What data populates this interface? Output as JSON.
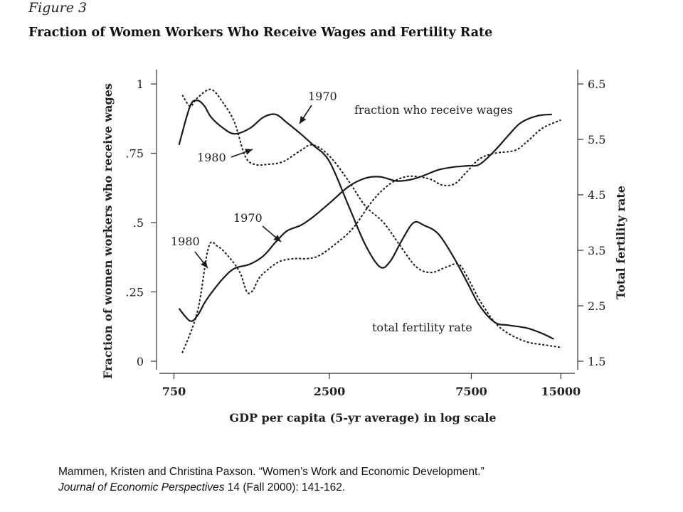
{
  "figure": {
    "label": "Figure 3",
    "title": "Fraction of Women Workers Who Receive Wages and Fertility Rate"
  },
  "chart_data": {
    "type": "line",
    "x_scale": "log",
    "xlabel": "GDP per capita (5-yr average) in log scale",
    "x_ticks": [
      750,
      2500,
      7500,
      15000
    ],
    "x_tick_labels": [
      "750",
      "2500",
      "7500",
      "15000"
    ],
    "xlim": [
      700,
      16000
    ],
    "y_left": {
      "label": "Fraction of women workers who receive wages",
      "ylim": [
        0,
        1
      ],
      "ticks": [
        1,
        0.75,
        0.5,
        0.25,
        0
      ],
      "tick_labels": [
        "1",
        ".75",
        ".5",
        ".25",
        "0"
      ]
    },
    "y_right": {
      "label": "Total fertility rate",
      "ylim": [
        1.5,
        6.5
      ],
      "ticks": [
        6.5,
        5.5,
        4.5,
        3.5,
        2.5,
        1.5
      ],
      "tick_labels": [
        "6.5",
        "5.5",
        "4.5",
        "3.5",
        "2.5",
        "1.5"
      ]
    },
    "series": [
      {
        "axis": "left",
        "style": "solid",
        "curve": "wages",
        "year": "1970",
        "points": [
          [
            780,
            0.19
          ],
          [
            850,
            0.145
          ],
          [
            900,
            0.165
          ],
          [
            950,
            0.21
          ],
          [
            1000,
            0.245
          ],
          [
            1100,
            0.3
          ],
          [
            1200,
            0.335
          ],
          [
            1350,
            0.35
          ],
          [
            1500,
            0.38
          ],
          [
            1650,
            0.43
          ],
          [
            1800,
            0.47
          ],
          [
            2000,
            0.49
          ],
          [
            2200,
            0.52
          ],
          [
            2500,
            0.57
          ],
          [
            2900,
            0.63
          ],
          [
            3300,
            0.66
          ],
          [
            3700,
            0.665
          ],
          [
            4200,
            0.65
          ],
          [
            4700,
            0.655
          ],
          [
            5200,
            0.67
          ],
          [
            5800,
            0.69
          ],
          [
            6500,
            0.7
          ],
          [
            7300,
            0.705
          ],
          [
            8000,
            0.71
          ],
          [
            9000,
            0.76
          ],
          [
            10000,
            0.815
          ],
          [
            11000,
            0.86
          ],
          [
            12500,
            0.885
          ],
          [
            14000,
            0.89
          ]
        ]
      },
      {
        "axis": "left",
        "style": "dotted",
        "curve": "wages",
        "year": "1980",
        "points": [
          [
            800,
            0.03
          ],
          [
            900,
            0.18
          ],
          [
            980,
            0.41
          ],
          [
            1050,
            0.415
          ],
          [
            1150,
            0.375
          ],
          [
            1250,
            0.32
          ],
          [
            1320,
            0.25
          ],
          [
            1380,
            0.255
          ],
          [
            1450,
            0.3
          ],
          [
            1550,
            0.33
          ],
          [
            1700,
            0.36
          ],
          [
            1900,
            0.37
          ],
          [
            2100,
            0.37
          ],
          [
            2300,
            0.38
          ],
          [
            2600,
            0.42
          ],
          [
            3000,
            0.48
          ],
          [
            3500,
            0.58
          ],
          [
            4000,
            0.64
          ],
          [
            4500,
            0.665
          ],
          [
            5000,
            0.665
          ],
          [
            5500,
            0.655
          ],
          [
            6000,
            0.635
          ],
          [
            6600,
            0.64
          ],
          [
            7200,
            0.68
          ],
          [
            8000,
            0.73
          ],
          [
            9000,
            0.75
          ],
          [
            10500,
            0.76
          ],
          [
            11500,
            0.79
          ],
          [
            13000,
            0.84
          ],
          [
            15000,
            0.87
          ]
        ]
      },
      {
        "axis": "right",
        "style": "solid",
        "curve": "fertility",
        "year": "1970",
        "points": [
          [
            780,
            5.4
          ],
          [
            850,
            6.1
          ],
          [
            900,
            6.2
          ],
          [
            950,
            6.1
          ],
          [
            1000,
            5.9
          ],
          [
            1100,
            5.7
          ],
          [
            1200,
            5.6
          ],
          [
            1350,
            5.7
          ],
          [
            1500,
            5.9
          ],
          [
            1650,
            5.95
          ],
          [
            1800,
            5.8
          ],
          [
            2000,
            5.6
          ],
          [
            2200,
            5.4
          ],
          [
            2500,
            5.1
          ],
          [
            2900,
            4.3
          ],
          [
            3300,
            3.6
          ],
          [
            3700,
            3.2
          ],
          [
            4000,
            3.3
          ],
          [
            4400,
            3.7
          ],
          [
            4800,
            4.0
          ],
          [
            5200,
            3.95
          ],
          [
            5800,
            3.8
          ],
          [
            6500,
            3.4
          ],
          [
            7300,
            2.9
          ],
          [
            8000,
            2.5
          ],
          [
            9000,
            2.2
          ],
          [
            10000,
            2.15
          ],
          [
            11500,
            2.1
          ],
          [
            13000,
            2.0
          ],
          [
            14200,
            1.9
          ]
        ]
      },
      {
        "axis": "right",
        "style": "dotted",
        "curve": "fertility",
        "year": "1980",
        "points": [
          [
            800,
            6.3
          ],
          [
            850,
            6.1
          ],
          [
            900,
            6.25
          ],
          [
            1000,
            6.4
          ],
          [
            1100,
            6.15
          ],
          [
            1200,
            5.8
          ],
          [
            1300,
            5.2
          ],
          [
            1400,
            5.05
          ],
          [
            1550,
            5.05
          ],
          [
            1750,
            5.1
          ],
          [
            2000,
            5.3
          ],
          [
            2200,
            5.4
          ],
          [
            2500,
            5.2
          ],
          [
            2900,
            4.75
          ],
          [
            3300,
            4.3
          ],
          [
            3800,
            4.0
          ],
          [
            4300,
            3.6
          ],
          [
            4900,
            3.2
          ],
          [
            5500,
            3.1
          ],
          [
            6200,
            3.2
          ],
          [
            6800,
            3.25
          ],
          [
            7300,
            3.0
          ],
          [
            8000,
            2.6
          ],
          [
            9000,
            2.2
          ],
          [
            10000,
            2.0
          ],
          [
            11500,
            1.85
          ],
          [
            13000,
            1.8
          ],
          [
            15000,
            1.75
          ]
        ]
      }
    ],
    "annotations": {
      "fraction_label": "fraction who receive wages",
      "fertility_label": "total fertility rate",
      "year_1970_upper": "1970",
      "year_1980_upper": "1980",
      "year_1970_lower": "1970",
      "year_1980_lower": "1980"
    }
  },
  "citation": {
    "line1": "Mammen, Kristen and Christina Paxson. “Women’s Work and Economic Development.”",
    "journal": "Journal of Economic Perspectives",
    "rest": " 14 (Fall 2000): 141-162."
  }
}
